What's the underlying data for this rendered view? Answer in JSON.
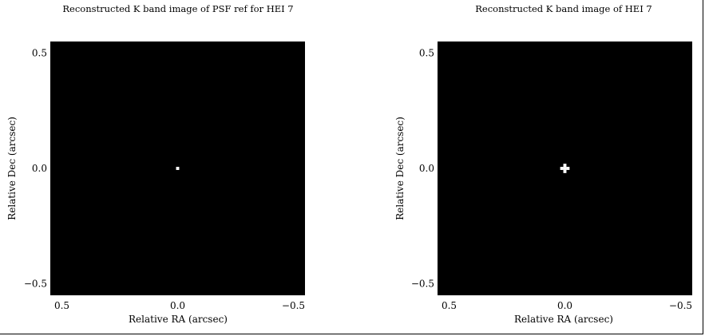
{
  "chart_data": [
    {
      "type": "heatmap",
      "title": "Reconstructed K band image of PSF ref for HEI 7",
      "xlabel": "Relative RA (arcsec)",
      "ylabel": "Relative Dec (arcsec)",
      "xlim": [
        0.55,
        -0.55
      ],
      "ylim": [
        -0.55,
        0.55
      ],
      "xticks": [
        {
          "value": 0.5,
          "label": "0.5"
        },
        {
          "value": 0.0,
          "label": "0.0"
        },
        {
          "value": -0.5,
          "label": "−0.5"
        }
      ],
      "yticks": [
        {
          "value": 0.5,
          "label": "0.5"
        },
        {
          "value": 0.0,
          "label": "0.0"
        },
        {
          "value": -0.5,
          "label": "−0.5"
        }
      ],
      "background": "#000000",
      "pixel_size_arcsec": 0.0135,
      "source": {
        "x": 0.0,
        "y": 0.0,
        "shape": "point"
      },
      "pixels": [
        {
          "x": 0.0,
          "y": 0.0,
          "value": 1.0
        }
      ]
    },
    {
      "type": "heatmap",
      "title": "Reconstructed K band image of HEI 7",
      "xlabel": "Relative RA (arcsec)",
      "ylabel": "Relative Dec (arcsec)",
      "xlim": [
        0.55,
        -0.55
      ],
      "ylim": [
        -0.55,
        0.55
      ],
      "xticks": [
        {
          "value": 0.5,
          "label": "0.5"
        },
        {
          "value": 0.0,
          "label": "0.0"
        },
        {
          "value": -0.5,
          "label": "−0.5"
        }
      ],
      "yticks": [
        {
          "value": 0.5,
          "label": "0.5"
        },
        {
          "value": 0.0,
          "label": "0.0"
        },
        {
          "value": -0.5,
          "label": "−0.5"
        }
      ],
      "background": "#000000",
      "pixel_size_arcsec": 0.0135,
      "source": {
        "x": 0.0,
        "y": 0.0,
        "shape": "cross"
      },
      "pixels": [
        {
          "x": 0.0,
          "y": 0.0,
          "value": 1.0
        },
        {
          "x": 0.0135,
          "y": 0.0,
          "value": 1.0
        },
        {
          "x": -0.0135,
          "y": 0.0,
          "value": 1.0
        },
        {
          "x": 0.0,
          "y": 0.0135,
          "value": 1.0
        },
        {
          "x": 0.0,
          "y": -0.0135,
          "value": 1.0
        }
      ]
    }
  ]
}
